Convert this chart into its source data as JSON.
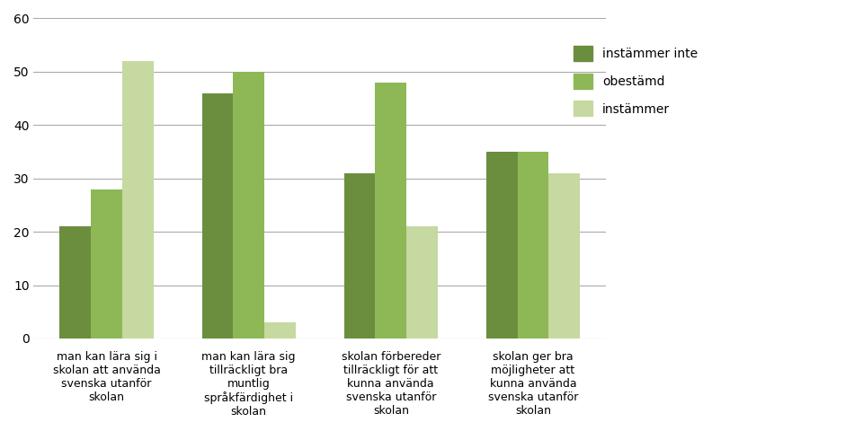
{
  "groups": [
    "man kan lära sig i\nskolan att använda\nsvenska utanför\nskolan",
    "man kan lära sig\ntillräckligt bra\nmuntlig\nspråkfärdighet i\nskolan",
    "skolan förbereder\ntillräckligt för att\nkunna använda\nsvenska utanför\nskolan",
    "skolan ger bra\nmöjligheter att\nkunna använda\nsvenska utanför\nskolan"
  ],
  "series": {
    "instämmer inte": [
      21,
      46,
      31,
      35
    ],
    "obestämd": [
      28,
      50,
      48,
      35
    ],
    "instämmer": [
      52,
      3,
      21,
      31
    ]
  },
  "colors": {
    "instämmer inte": "#6B8E3E",
    "obestämd": "#8DB855",
    "instämmer": "#C5D9A0"
  },
  "ylim": [
    0,
    60
  ],
  "yticks": [
    0,
    10,
    20,
    30,
    40,
    50,
    60
  ],
  "legend_labels": [
    "instämmer inte",
    "obestämd",
    "instämmer"
  ],
  "bar_width": 0.22,
  "figure_width": 9.6,
  "figure_height": 4.8,
  "background_color": "#ffffff",
  "grid_color": "#aaaaaa"
}
